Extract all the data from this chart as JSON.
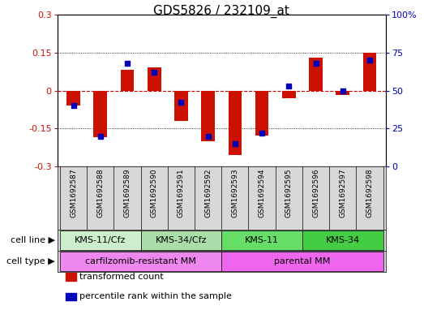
{
  "title": "GDS5826 / 232109_at",
  "samples": [
    "GSM1692587",
    "GSM1692588",
    "GSM1692589",
    "GSM1692590",
    "GSM1692591",
    "GSM1692592",
    "GSM1692593",
    "GSM1692594",
    "GSM1692595",
    "GSM1692596",
    "GSM1692597",
    "GSM1692598"
  ],
  "transformed_count": [
    -0.058,
    -0.185,
    0.082,
    0.09,
    -0.12,
    -0.2,
    -0.255,
    -0.178,
    -0.03,
    0.13,
    -0.018,
    0.15
  ],
  "percentile_rank": [
    40,
    20,
    68,
    62,
    42,
    20,
    15,
    22,
    53,
    68,
    50,
    70
  ],
  "ylim_left": [
    -0.3,
    0.3
  ],
  "ylim_right": [
    0,
    100
  ],
  "yticks_left": [
    -0.3,
    -0.15,
    0,
    0.15,
    0.3
  ],
  "yticks_right": [
    0,
    25,
    50,
    75,
    100
  ],
  "ytick_labels_left": [
    "-0.3",
    "-0.15",
    "0",
    "0.15",
    "0.3"
  ],
  "ytick_labels_right": [
    "0",
    "25",
    "50",
    "75",
    "100%"
  ],
  "bar_color": "#cc1100",
  "dot_color": "#0000bb",
  "hline_color": "#cc0000",
  "cell_line_groups": [
    {
      "label": "KMS-11/Cfz",
      "start": 0,
      "end": 2,
      "color": "#cceecc"
    },
    {
      "label": "KMS-34/Cfz",
      "start": 3,
      "end": 5,
      "color": "#aaddaa"
    },
    {
      "label": "KMS-11",
      "start": 6,
      "end": 8,
      "color": "#66dd66"
    },
    {
      "label": "KMS-34",
      "start": 9,
      "end": 11,
      "color": "#44cc44"
    }
  ],
  "cell_type_groups": [
    {
      "label": "carfilzomib-resistant MM",
      "start": 0,
      "end": 5,
      "color": "#ee88ee"
    },
    {
      "label": "parental MM",
      "start": 6,
      "end": 11,
      "color": "#ee66ee"
    }
  ],
  "cell_line_label": "cell line",
  "cell_type_label": "cell type",
  "legend_items": [
    {
      "label": "transformed count",
      "color": "#cc1100"
    },
    {
      "label": "percentile rank within the sample",
      "color": "#0000bb"
    }
  ],
  "bar_width": 0.5,
  "dot_size": 16,
  "title_fontsize": 11,
  "tick_fontsize": 8,
  "sample_fontsize": 6.5,
  "group_fontsize": 8,
  "label_fontsize": 8,
  "legend_fontsize": 8
}
